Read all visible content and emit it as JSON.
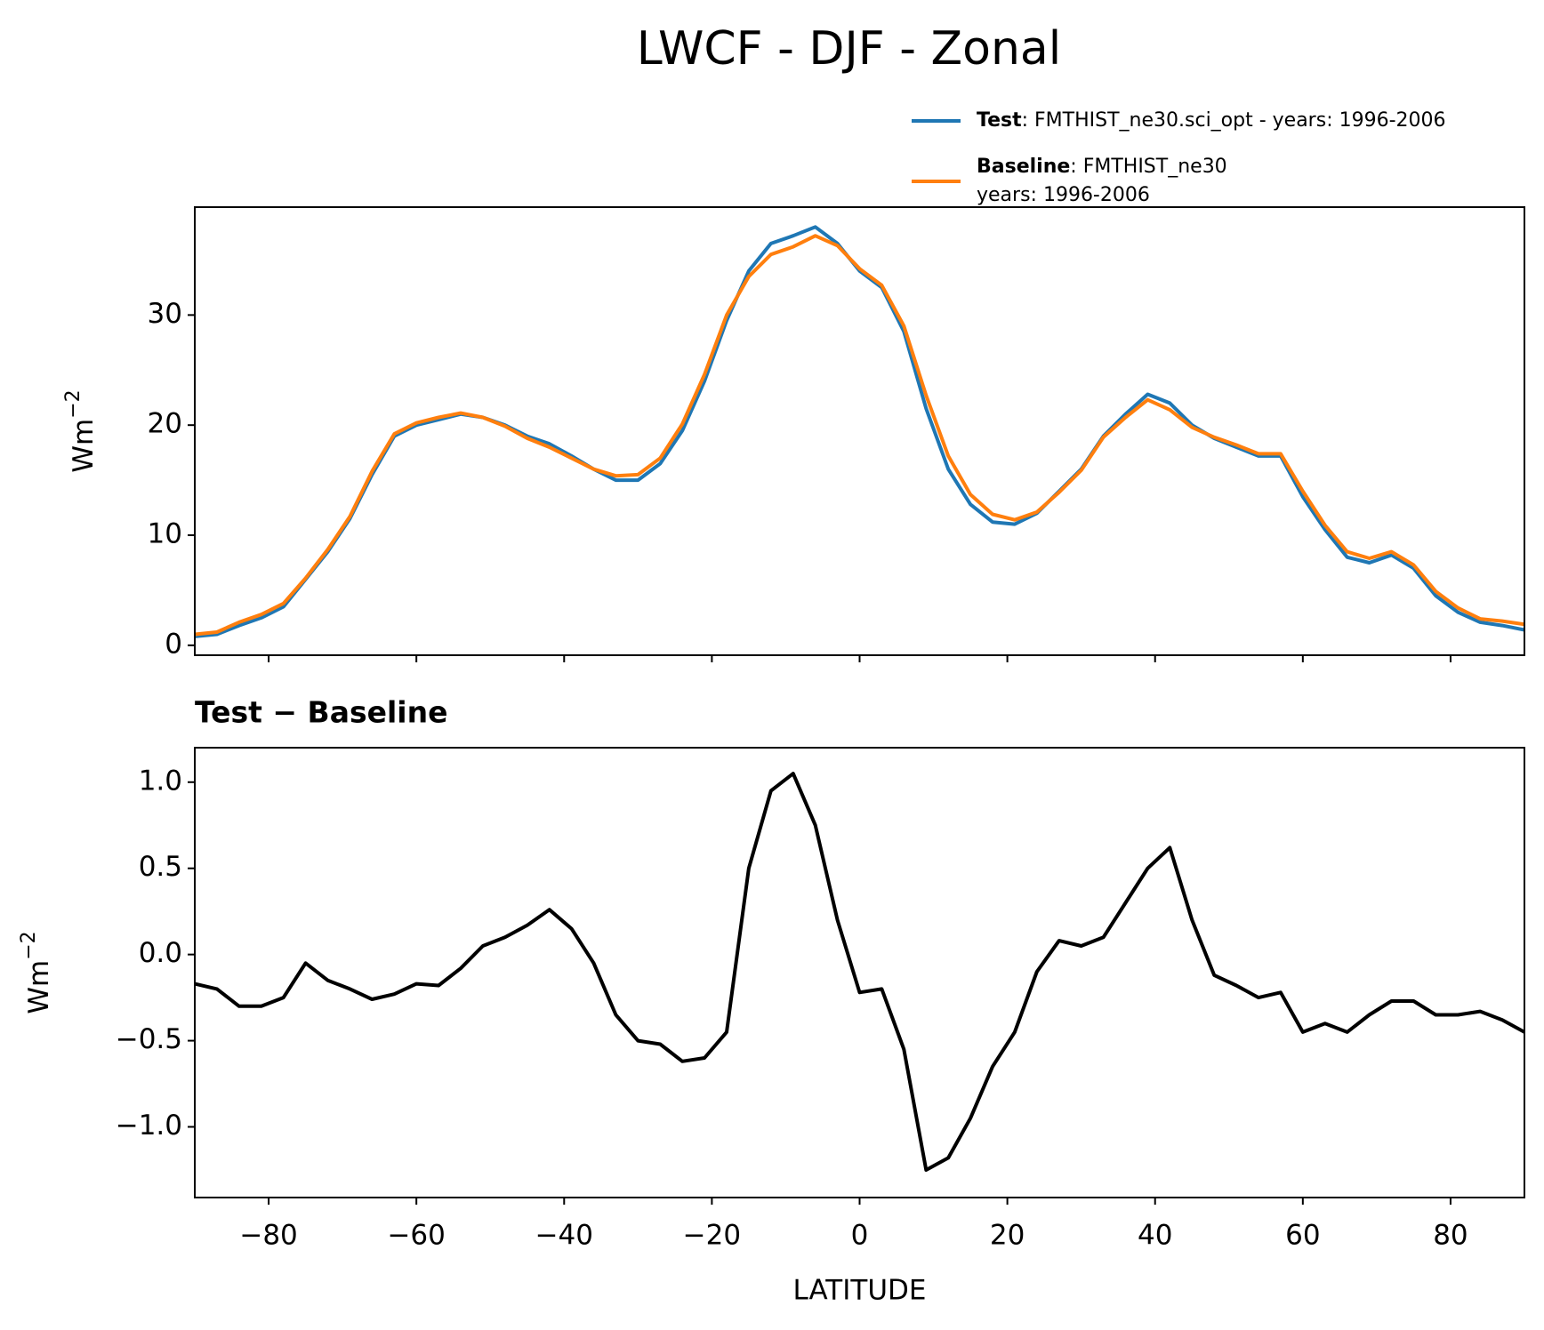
{
  "chart_data": [
    {
      "type": "line",
      "suptitle": "LWCF - DJF - Zonal",
      "ylabel": {
        "base": "Wm",
        "sup": "−2"
      },
      "x": [
        -90,
        -87,
        -84,
        -81,
        -78,
        -75,
        -72,
        -69,
        -66,
        -63,
        -60,
        -57,
        -54,
        -51,
        -48,
        -45,
        -42,
        -39,
        -36,
        -33,
        -30,
        -27,
        -24,
        -21,
        -18,
        -15,
        -12,
        -9,
        -6,
        -3,
        0,
        3,
        6,
        9,
        12,
        15,
        18,
        21,
        24,
        27,
        30,
        33,
        36,
        39,
        42,
        45,
        48,
        51,
        54,
        57,
        60,
        63,
        66,
        69,
        72,
        75,
        78,
        81,
        84,
        87,
        90
      ],
      "series": [
        {
          "name": "Test",
          "detail": [
            ": FMTHIST_ne30.sci_opt - years: 1996-2006"
          ],
          "color": "#1f77b4",
          "values": [
            0.8,
            1.0,
            1.8,
            2.5,
            3.5,
            6.0,
            8.5,
            11.5,
            15.5,
            19.0,
            20.0,
            20.5,
            21.0,
            20.7,
            20.0,
            19.0,
            18.3,
            17.2,
            16.0,
            15.0,
            15.0,
            16.5,
            19.5,
            24.0,
            29.5,
            34.0,
            36.5,
            37.2,
            38.0,
            36.5,
            34.0,
            32.5,
            28.5,
            21.5,
            16.0,
            12.8,
            11.2,
            11.0,
            12.0,
            14.0,
            16.0,
            19.0,
            21.0,
            22.8,
            22.0,
            20.0,
            18.8,
            18.0,
            17.2,
            17.2,
            13.5,
            10.5,
            8.0,
            7.5,
            8.2,
            7.0,
            4.5,
            3.0,
            2.1,
            1.8,
            1.4
          ]
        },
        {
          "name": "Baseline",
          "detail": [
            ": FMTHIST_ne30",
            "years: 1996-2006"
          ],
          "color": "#ff7f0e",
          "values": [
            1.0,
            1.2,
            2.1,
            2.8,
            3.8,
            6.1,
            8.7,
            11.7,
            15.8,
            19.2,
            20.2,
            20.7,
            21.1,
            20.7,
            19.9,
            18.8,
            18.0,
            17.0,
            16.0,
            15.4,
            15.5,
            17.0,
            20.1,
            24.6,
            30.0,
            33.5,
            35.5,
            36.2,
            37.2,
            36.3,
            34.2,
            32.7,
            29.0,
            22.7,
            17.2,
            13.7,
            11.9,
            11.4,
            12.1,
            13.9,
            15.9,
            18.9,
            20.7,
            22.3,
            21.4,
            19.8,
            18.9,
            18.2,
            17.4,
            17.4,
            14.0,
            10.9,
            8.5,
            7.9,
            8.5,
            7.3,
            4.9,
            3.4,
            2.4,
            2.2,
            1.9
          ]
        }
      ],
      "xlim": [
        -90,
        90
      ],
      "xticks": [
        {
          "value": -80,
          "label": "−80"
        },
        {
          "value": -60,
          "label": "−60"
        },
        {
          "value": -40,
          "label": "−40"
        },
        {
          "value": -20,
          "label": "−20"
        },
        0,
        20,
        40,
        60,
        80
      ],
      "ylim": [
        -0.9,
        39.8
      ],
      "yticks": [
        0,
        10,
        20,
        30
      ],
      "legend": "upper right"
    },
    {
      "type": "line",
      "title": "Test − Baseline",
      "ylabel": {
        "base": "Wm",
        "sup": "−2"
      },
      "xlabel": "LATITUDE",
      "x": [
        -90,
        -87,
        -84,
        -81,
        -78,
        -75,
        -72,
        -69,
        -66,
        -63,
        -60,
        -57,
        -54,
        -51,
        -48,
        -45,
        -42,
        -39,
        -36,
        -33,
        -30,
        -27,
        -24,
        -21,
        -18,
        -15,
        -12,
        -9,
        -6,
        -3,
        0,
        3,
        6,
        9,
        12,
        15,
        18,
        21,
        24,
        27,
        30,
        33,
        36,
        39,
        42,
        45,
        48,
        51,
        54,
        57,
        60,
        63,
        66,
        69,
        72,
        75,
        78,
        81,
        84,
        87,
        90
      ],
      "values": [
        -0.17,
        -0.2,
        -0.3,
        -0.3,
        -0.25,
        -0.05,
        -0.15,
        -0.2,
        -0.26,
        -0.23,
        -0.17,
        -0.18,
        -0.08,
        0.05,
        0.1,
        0.17,
        0.26,
        0.15,
        -0.05,
        -0.35,
        -0.5,
        -0.52,
        -0.62,
        -0.6,
        -0.45,
        0.5,
        0.95,
        1.05,
        0.75,
        0.2,
        -0.22,
        -0.2,
        -0.55,
        -1.25,
        -1.18,
        -0.95,
        -0.65,
        -0.45,
        -0.1,
        0.08,
        0.05,
        0.1,
        0.3,
        0.5,
        0.62,
        0.2,
        -0.12,
        -0.18,
        -0.25,
        -0.22,
        -0.45,
        -0.4,
        -0.45,
        -0.35,
        -0.27,
        -0.27,
        -0.35,
        -0.35,
        -0.33,
        -0.38,
        -0.45
      ],
      "color": "#000000",
      "xlim": [
        -90,
        90
      ],
      "xticks": [
        {
          "value": -80,
          "label": "−80"
        },
        {
          "value": -60,
          "label": "−60"
        },
        {
          "value": -40,
          "label": "−40"
        },
        {
          "value": -20,
          "label": "−20"
        },
        0,
        20,
        40,
        60,
        80
      ],
      "ylim": [
        -1.41,
        1.2
      ],
      "yticks": [
        {
          "value": -1.0,
          "label": "−1.0"
        },
        {
          "value": -0.5,
          "label": "−0.5"
        },
        {
          "value": 0.0,
          "label": "0.0"
        },
        {
          "value": 0.5,
          "label": "0.5"
        },
        {
          "value": 1.0,
          "label": "1.0"
        }
      ]
    }
  ]
}
